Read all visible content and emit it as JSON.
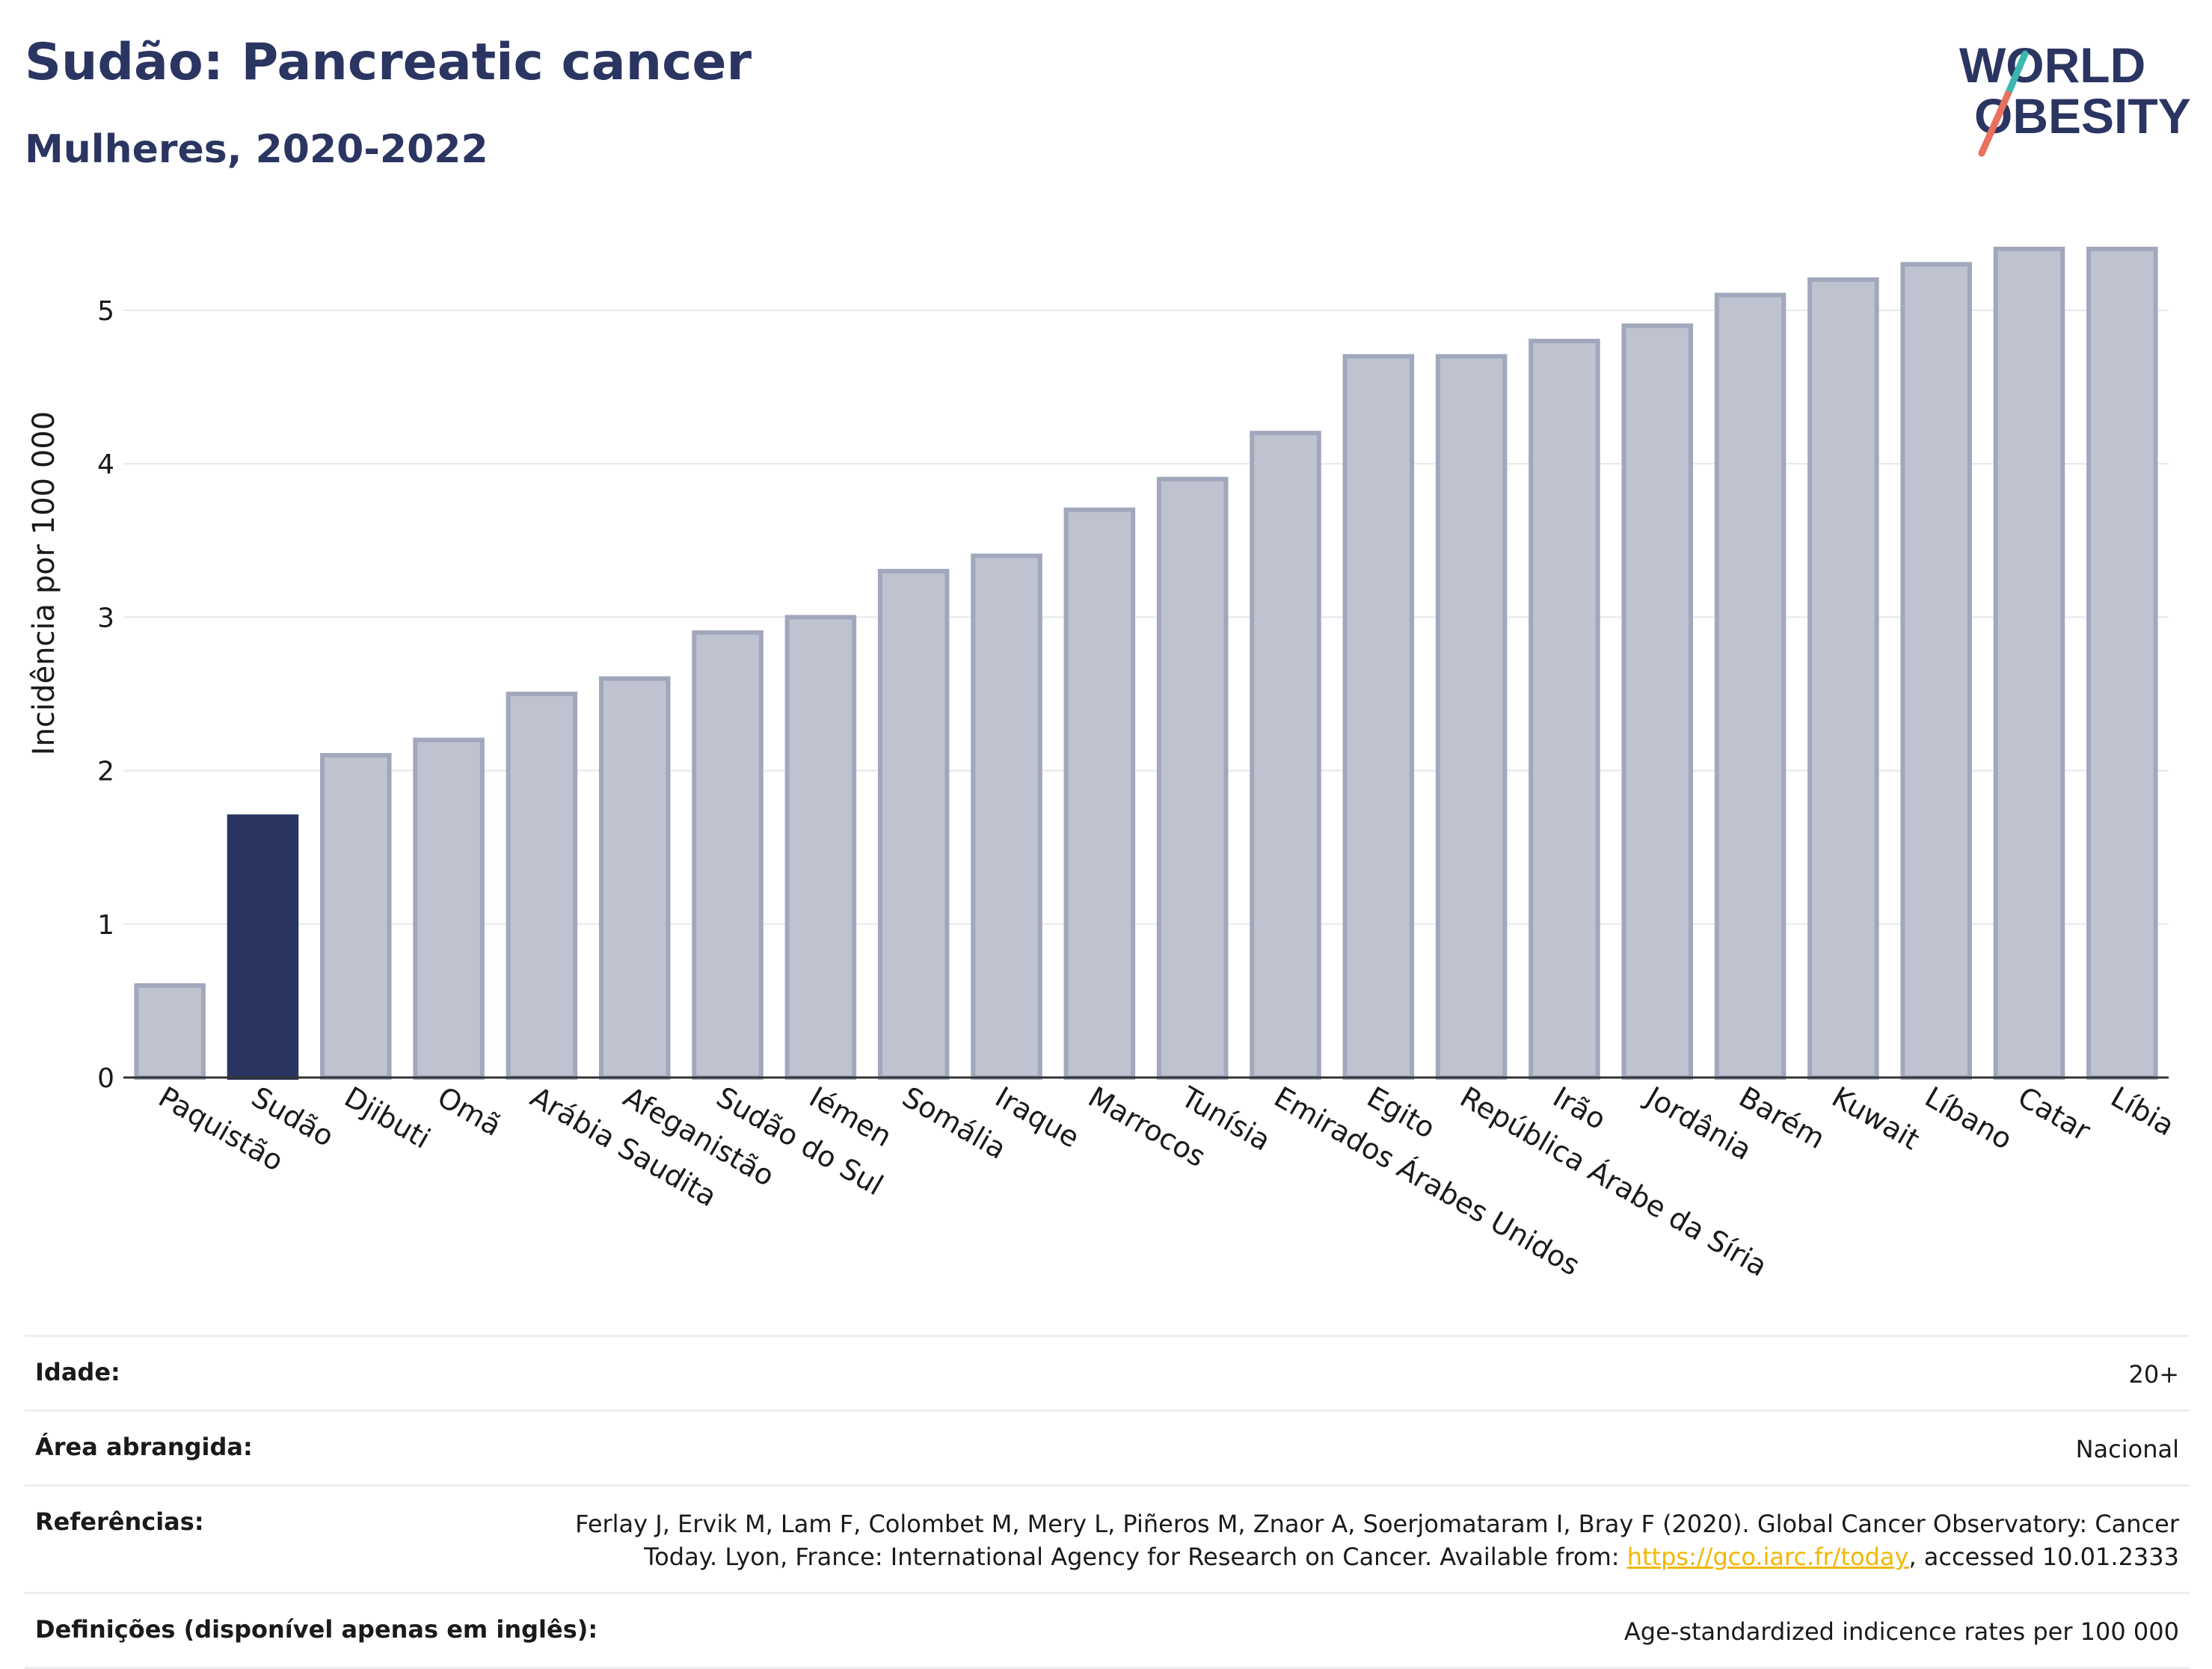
{
  "header": {
    "title": "Sudão: Pancreatic cancer",
    "subtitle": "Mulheres, 2020-2022"
  },
  "logo": {
    "line1": "WORLD",
    "line2": "OBESITY",
    "colors": {
      "text": "#2b3561",
      "slash_teal": "#3ab7b0",
      "slash_red": "#e8705f"
    }
  },
  "chart_data": {
    "type": "bar",
    "categories": [
      "Paquistão",
      "Sudão",
      "Djibuti",
      "Omã",
      "Arábia Saudita",
      "Afeganistão",
      "Sudão do Sul",
      "Iémen",
      "Somália",
      "Iraque",
      "Marrocos",
      "Tunísia",
      "Emirados Árabes Unidos",
      "Egito",
      "República Árabe da Síria",
      "Irão",
      "Jordânia",
      "Barém",
      "Kuwait",
      "Líbano",
      "Catar",
      "Líbia"
    ],
    "values": [
      0.6,
      1.7,
      2.1,
      2.2,
      2.5,
      2.6,
      2.9,
      3.0,
      3.3,
      3.4,
      3.7,
      3.9,
      4.2,
      4.7,
      4.7,
      4.8,
      4.9,
      5.1,
      5.2,
      5.3,
      5.4,
      5.4
    ],
    "highlight": "Sudão",
    "ylabel": "Incidência por 100 000",
    "yticks": [
      "0",
      "1",
      "2",
      "3",
      "4",
      "5"
    ],
    "ylim": [
      0,
      5.5
    ],
    "grid": true,
    "colors": {
      "bar": "#bfc3d0",
      "bar_edge": "#a1a7bc",
      "highlight": "#2b3561",
      "grid": "#e6e8ee"
    }
  },
  "info": {
    "age_label": "Idade:",
    "age_value": "20+",
    "area_label": "Área abrangida:",
    "area_value": "Nacional",
    "refs_label": "Referências:",
    "refs_text": "Ferlay J, Ervik M, Lam F, Colombet M, Mery L, Piñeros M, Znaor A, Soerjomataram I, Bray F (2020). Global Cancer Observatory: Cancer Today. Lyon, France: International Agency for Research on Cancer. Available from: ",
    "refs_link": "https://gco.iarc.fr/today",
    "refs_suffix": ", accessed 10.01.2333",
    "defs_label": "Definições (disponível apenas em inglês):",
    "defs_value": "Age-standardized indicence rates per 100 000"
  }
}
